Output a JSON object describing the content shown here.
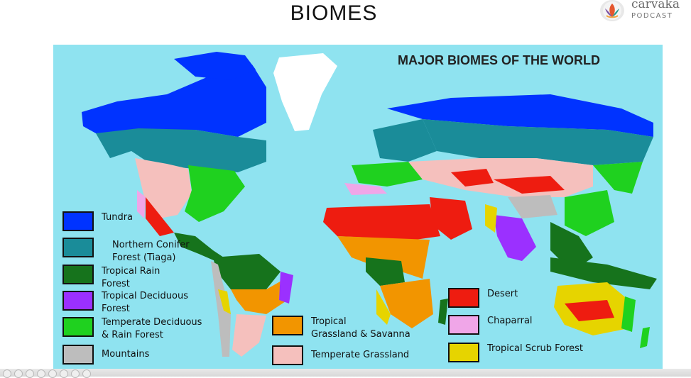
{
  "slide": {
    "title": "BIOMES"
  },
  "logo": {
    "name": "cārvāka",
    "sub": "PODCAST",
    "icon": "lotus-logo-icon"
  },
  "map": {
    "title": "MAJOR BIOMES OF THE WORLD",
    "ocean_color": "#8fe3f0",
    "legend": [
      {
        "label": "Tundra",
        "color": "#0033ff"
      },
      {
        "label": "Northern Conifer\nForest (Tiaga)",
        "color": "#1a8c99"
      },
      {
        "label": "Tropical Rain\nForest",
        "color": "#16731c"
      },
      {
        "label": "Tropical Deciduous\nForest",
        "color": "#9b30ff"
      },
      {
        "label": "Temperate Deciduous\n& Rain Forest",
        "color": "#1fd11f"
      },
      {
        "label": "Mountains",
        "color": "#bdbdbd"
      },
      {
        "label": "Tropical\nGrassland & Savanna",
        "color": "#f29500"
      },
      {
        "label": "Temperate Grassland",
        "color": "#f5c0bd"
      },
      {
        "label": "Desert",
        "color": "#ee1c10"
      },
      {
        "label": "Chaparral",
        "color": "#f0a6e8"
      },
      {
        "label": "Tropical Scrub Forest",
        "color": "#e6d400"
      }
    ]
  }
}
